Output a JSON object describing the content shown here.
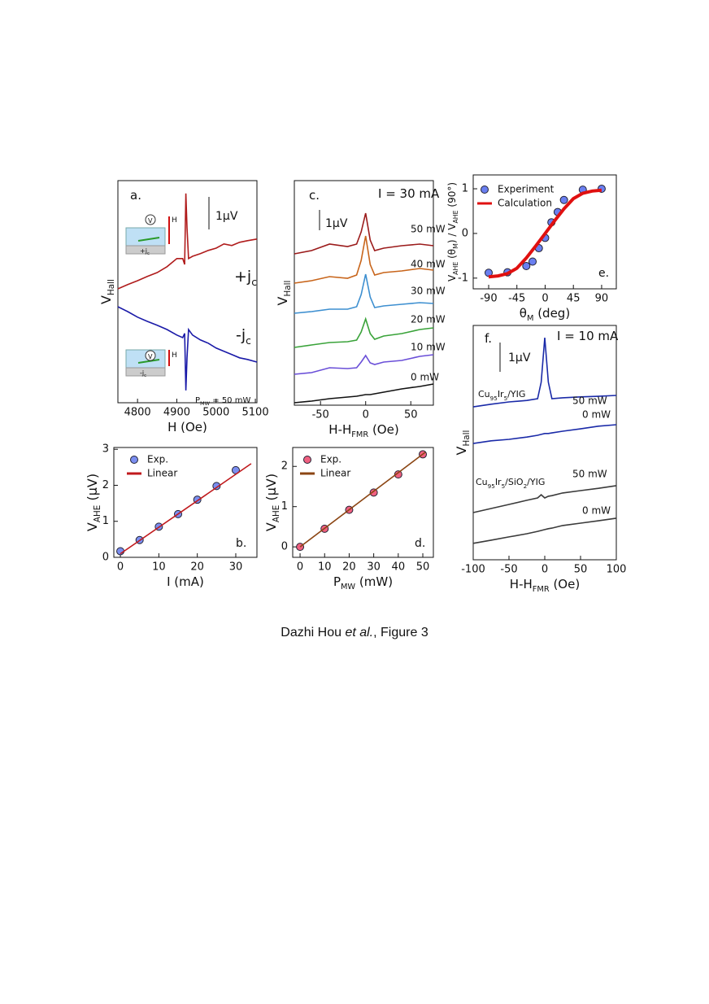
{
  "chart_data": [
    {
      "type": "line",
      "xlabel": [
        "H (Oe)"
      ],
      "ylabel": [
        "V",
        "Hall"
      ],
      "xlim": [
        4750,
        5104
      ],
      "ylim": [
        0,
        6.825
      ],
      "xticks": [
        4800,
        4900,
        5000,
        5100
      ],
      "x": [
        4750,
        4775,
        4800,
        4825,
        4850,
        4875,
        4900,
        4915,
        4920,
        4923,
        4926,
        4930,
        4940,
        4960,
        4980,
        5000,
        5020,
        5040,
        5060,
        5080,
        5104
      ],
      "series": [
        {
          "color": "#b01c1c",
          "values": [
            3.5,
            3.63,
            3.75,
            3.88,
            4.0,
            4.18,
            4.43,
            4.43,
            4.25,
            6.43,
            5.38,
            4.43,
            4.5,
            4.58,
            4.68,
            4.75,
            4.88,
            4.83,
            4.93,
            4.98,
            5.03
          ]
        },
        {
          "color": "#1a1aa8",
          "values": [
            2.95,
            2.8,
            2.63,
            2.5,
            2.38,
            2.25,
            2.08,
            2.0,
            2.13,
            0.38,
            1.38,
            2.25,
            2.08,
            1.93,
            1.83,
            1.68,
            1.58,
            1.48,
            1.38,
            1.33,
            1.25
          ]
        }
      ],
      "annotations": [
        [
          "a."
        ],
        [
          "1µV"
        ],
        [
          "+j",
          "c"
        ],
        [
          "-j",
          "c"
        ],
        [
          "P",
          "MW",
          " = 50 mW"
        ],
        [
          "H"
        ],
        [
          "H"
        ],
        [
          "V"
        ],
        [
          "V"
        ],
        [
          "+j",
          "c"
        ],
        [
          "-j",
          "c"
        ]
      ]
    },
    {
      "type": "scatter",
      "xlabel": [
        "I (mA)"
      ],
      "ylabel": [
        "V",
        "AHE",
        " (µV)"
      ],
      "xlim": [
        -1.7,
        35.5
      ],
      "ylim": [
        0,
        3.05
      ],
      "xticks": [
        0,
        10,
        20,
        30
      ],
      "yticks": [
        0,
        1,
        2,
        3
      ],
      "series": [
        {
          "name": "Exp.",
          "style": "marker",
          "color": "#7b8ef0",
          "x": [
            0,
            5,
            10,
            15,
            20,
            25,
            30
          ],
          "values": [
            0.17,
            0.48,
            0.85,
            1.2,
            1.6,
            1.98,
            2.42
          ]
        },
        {
          "name": "Linear",
          "style": "line",
          "color": "#c0191c",
          "x": [
            0,
            34
          ],
          "values": [
            0.1,
            2.6
          ]
        }
      ],
      "annotations": [
        [
          "b."
        ]
      ]
    },
    {
      "type": "line",
      "xlabel": [
        "H-H",
        "FMR",
        " (Oe)"
      ],
      "ylabel": [
        "V",
        "Hall"
      ],
      "xlim": [
        -79,
        75
      ],
      "ylim": [
        0,
        11.04
      ],
      "xticks": [
        -50,
        0,
        50
      ],
      "x": [
        -79,
        -60,
        -40,
        -20,
        -10,
        -5,
        0,
        5,
        10,
        20,
        40,
        60,
        75
      ],
      "series": [
        {
          "name": "50 mW",
          "color": "#9b1b1b",
          "values": [
            7.44,
            7.6,
            7.92,
            7.8,
            7.92,
            8.52,
            9.44,
            8.12,
            7.6,
            7.72,
            7.84,
            7.92,
            7.84
          ]
        },
        {
          "name": "40 mW",
          "color": "#c8651b",
          "values": [
            6.0,
            6.12,
            6.32,
            6.24,
            6.4,
            7.12,
            8.32,
            6.92,
            6.4,
            6.52,
            6.6,
            6.72,
            6.64
          ]
        },
        {
          "name": "30 mW",
          "color": "#3d8fd0",
          "values": [
            4.52,
            4.6,
            4.72,
            4.72,
            4.84,
            5.44,
            6.44,
            5.32,
            4.8,
            4.88,
            4.96,
            5.04,
            5.0
          ]
        },
        {
          "name": "20 mW",
          "color": "#3aa33a",
          "values": [
            2.84,
            2.96,
            3.08,
            3.12,
            3.2,
            3.6,
            4.24,
            3.52,
            3.24,
            3.4,
            3.52,
            3.72,
            3.8
          ]
        },
        {
          "name": "10 mW",
          "color": "#6a4fd8",
          "values": [
            1.52,
            1.6,
            1.84,
            1.8,
            1.84,
            2.12,
            2.44,
            2.08,
            2.0,
            2.12,
            2.2,
            2.4,
            2.48
          ]
        },
        {
          "name": "0 mW",
          "color": "#111111",
          "values": [
            0.12,
            0.2,
            0.32,
            0.4,
            0.44,
            0.48,
            0.52,
            0.52,
            0.56,
            0.64,
            0.8,
            0.92,
            1.04
          ]
        }
      ],
      "annotations": [
        [
          "c."
        ],
        [
          "I = 30 mA"
        ],
        [
          "1µV"
        ]
      ]
    },
    {
      "type": "scatter",
      "xlabel": [
        "P",
        "MW",
        " (mW)"
      ],
      "ylabel": [
        "V",
        "AHE",
        " (µV)"
      ],
      "xlim": [
        -3,
        54.3
      ],
      "ylim": [
        -0.26,
        2.47
      ],
      "xticks": [
        0,
        10,
        20,
        30,
        40,
        50
      ],
      "yticks": [
        0,
        1,
        2
      ],
      "series": [
        {
          "name": "Exp.",
          "style": "marker",
          "color": "#f06080",
          "x": [
            0,
            10,
            20,
            30,
            40,
            50
          ],
          "values": [
            0,
            0.45,
            0.92,
            1.35,
            1.8,
            2.3
          ]
        },
        {
          "name": "Linear",
          "style": "line",
          "color": "#8b4513",
          "x": [
            0,
            51
          ],
          "values": [
            0,
            2.35
          ]
        }
      ],
      "annotations": [
        [
          "d."
        ]
      ]
    },
    {
      "type": "scatter",
      "xlabel": [
        "θ",
        "M",
        " (deg)"
      ],
      "ylabel": [
        "V",
        "AHE",
        " (θ",
        "M",
        ") / V",
        "AHE",
        " (90°)"
      ],
      "xlim": [
        -114.6,
        113.4
      ],
      "ylim": [
        -1.24,
        1.31
      ],
      "xticks": [
        -90,
        -45,
        0,
        45,
        90
      ],
      "yticks": [
        -1,
        0,
        1
      ],
      "series": [
        {
          "name": "Experiment",
          "style": "marker",
          "color": "#6a7ff0",
          "x": [
            -90,
            -60,
            -30,
            -20,
            -10,
            0,
            10,
            20,
            30,
            60,
            90
          ],
          "values": [
            -0.88,
            -0.87,
            -0.73,
            -0.63,
            -0.33,
            -0.1,
            0.25,
            0.48,
            0.75,
            0.98,
            1.0
          ]
        },
        {
          "name": "Calculation",
          "style": "line",
          "color": "#e01010",
          "x": [
            -90,
            -75,
            -60,
            -45,
            -30,
            -15,
            0,
            15,
            30,
            45,
            60,
            75,
            90
          ],
          "values": [
            -0.97,
            -0.95,
            -0.9,
            -0.78,
            -0.55,
            -0.28,
            0,
            0.28,
            0.55,
            0.78,
            0.9,
            0.95,
            0.97
          ]
        }
      ],
      "annotations": [
        [
          "e."
        ]
      ]
    },
    {
      "type": "line",
      "xlabel": [
        "H-H",
        "FMR",
        " (Oe)"
      ],
      "ylabel": [
        "V",
        "Hall"
      ],
      "xlim": [
        -100,
        100
      ],
      "ylim": [
        0,
        8.0
      ],
      "xticks": [
        -100,
        -50,
        0,
        50,
        100
      ],
      "x": [
        -100,
        -75,
        -50,
        -25,
        -10,
        -5,
        0,
        5,
        10,
        25,
        50,
        75,
        100
      ],
      "series": [
        {
          "name": "50 mW",
          "color": "#1a2aa8",
          "values": [
            5.22,
            5.31,
            5.39,
            5.44,
            5.5,
            6.06,
            7.58,
            6.06,
            5.5,
            5.53,
            5.56,
            5.58,
            5.61
          ]
        },
        {
          "name": "0 mW",
          "color": "#1a2aa8",
          "values": [
            3.97,
            4.06,
            4.11,
            4.19,
            4.25,
            4.28,
            4.31,
            4.31,
            4.33,
            4.39,
            4.47,
            4.56,
            4.61
          ]
        },
        {
          "name": "50 mW",
          "color": "#3a3a3a",
          "values": [
            1.61,
            1.75,
            1.89,
            2.03,
            2.11,
            2.22,
            2.11,
            2.17,
            2.19,
            2.28,
            2.36,
            2.44,
            2.53
          ]
        },
        {
          "name": "0 mW",
          "color": "#3a3a3a",
          "values": [
            0.56,
            0.67,
            0.78,
            0.89,
            0.97,
            1.0,
            1.03,
            1.06,
            1.08,
            1.17,
            1.25,
            1.33,
            1.42
          ]
        }
      ],
      "annotations": [
        [
          "f."
        ],
        [
          "I = 10 mA"
        ],
        [
          "1µV"
        ],
        [
          "Cu",
          "95",
          "Ir",
          "5",
          "/YIG"
        ],
        [
          "Cu",
          "95",
          "Ir",
          "5",
          "/SiO",
          "2",
          "/YIG"
        ]
      ]
    }
  ],
  "caption": [
    "Dazhi Hou ",
    "et al.",
    ", Figure 3"
  ]
}
